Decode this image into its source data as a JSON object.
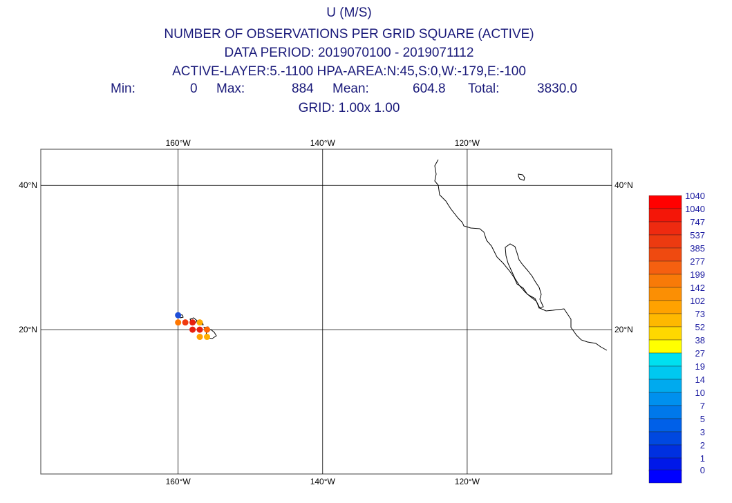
{
  "header": {
    "title": "U (M/S)",
    "subtitle": "NUMBER OF OBSERVATIONS PER GRID SQUARE (ACTIVE)",
    "data_period": "DATA PERIOD: 2019070100 - 2019071112",
    "layer_area": "ACTIVE-LAYER:5.-1100 HPA-AREA:N:45,S:0,W:-179,E:-100",
    "grid": "GRID:  1.00x  1.00"
  },
  "stats": {
    "min_label": "Min:",
    "min_value": "0",
    "max_label": "Max:",
    "max_value": "884",
    "mean_label": "Mean:",
    "mean_value": "604.8",
    "total_label": "Total:",
    "total_value": "3830.0"
  },
  "map": {
    "extent": {
      "west": -179,
      "east": -100,
      "south": 0,
      "north": 45
    },
    "lon_ticks": [
      {
        "lon": -160,
        "label": "160°W"
      },
      {
        "lon": -140,
        "label": "140°W"
      },
      {
        "lon": -120,
        "label": "120°W"
      }
    ],
    "lat_ticks": [
      {
        "lat": 40,
        "label": "40°N"
      },
      {
        "lat": 20,
        "label": "20°N"
      }
    ],
    "colors": {
      "frame": "#606060",
      "grid": "#000000",
      "coast": "#000000"
    }
  },
  "chart_data": {
    "type": "scatter",
    "description_units": "lon/lat in degrees, value = number of observations",
    "points": [
      {
        "lon": -160,
        "lat": 22,
        "color": "#1f4fd8"
      },
      {
        "lon": -160,
        "lat": 21,
        "color": "#ff7700"
      },
      {
        "lon": -159,
        "lat": 21,
        "color": "#f03a10"
      },
      {
        "lon": -158,
        "lat": 21,
        "color": "#e82010"
      },
      {
        "lon": -157,
        "lat": 21,
        "color": "#ffaa00"
      },
      {
        "lon": -158,
        "lat": 20,
        "color": "#e82010"
      },
      {
        "lon": -157,
        "lat": 20,
        "color": "#e82010"
      },
      {
        "lon": -156,
        "lat": 20,
        "color": "#ff6600"
      },
      {
        "lon": -157,
        "lat": 19,
        "color": "#ffa000"
      },
      {
        "lon": -156,
        "lat": 19,
        "color": "#ffb000"
      }
    ]
  },
  "legend": {
    "labels": [
      "1040",
      "1040",
      "747",
      "537",
      "385",
      "277",
      "199",
      "142",
      "102",
      "73",
      "52",
      "38",
      "27",
      "19",
      "14",
      "10",
      "7",
      "5",
      "3",
      "2",
      "1",
      "0"
    ],
    "colors": [
      "#ff0000",
      "#f41608",
      "#ee2a10",
      "#ec3a10",
      "#ef4a10",
      "#f56010",
      "#f87a08",
      "#fb8f04",
      "#ffa200",
      "#ffb800",
      "#ffd800",
      "#ffff00",
      "#00e0f0",
      "#00c8f0",
      "#00aaee",
      "#0090ee",
      "#0078ea",
      "#0060e8",
      "#0048e0",
      "#0030e0",
      "#0018e8",
      "#0000ff"
    ]
  }
}
